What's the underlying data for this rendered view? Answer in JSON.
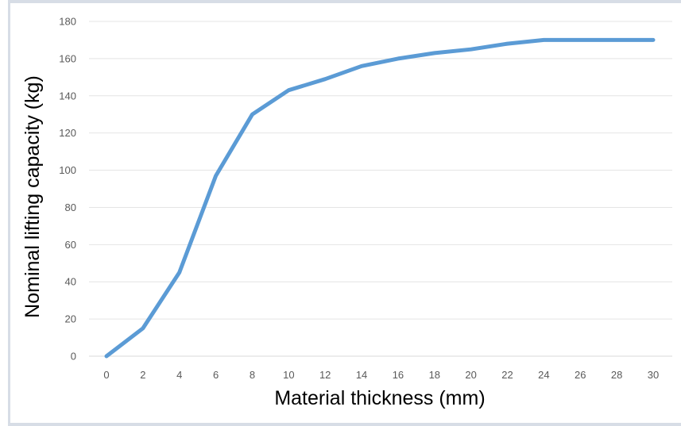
{
  "chart_data": {
    "type": "line",
    "title": "",
    "xlabel": "Material thickness (mm)",
    "ylabel": "Nominal lifting capacity (kg)",
    "xlim": [
      0,
      30
    ],
    "ylim": [
      0,
      180
    ],
    "x_ticks": [
      0,
      2,
      4,
      6,
      8,
      10,
      12,
      14,
      16,
      18,
      20,
      22,
      24,
      26,
      28,
      30
    ],
    "y_ticks": [
      0,
      20,
      40,
      60,
      80,
      100,
      120,
      140,
      160,
      180
    ],
    "grid": "horizontal",
    "series": [
      {
        "x": [
          0,
          2,
          4,
          6,
          8,
          10,
          12,
          14,
          16,
          18,
          20,
          22,
          24,
          26,
          28,
          30
        ],
        "y": [
          0,
          15,
          45,
          97,
          130,
          143,
          149,
          156,
          160,
          163,
          165,
          168,
          170,
          170,
          170,
          170
        ],
        "color": "#5b9bd5"
      }
    ]
  }
}
